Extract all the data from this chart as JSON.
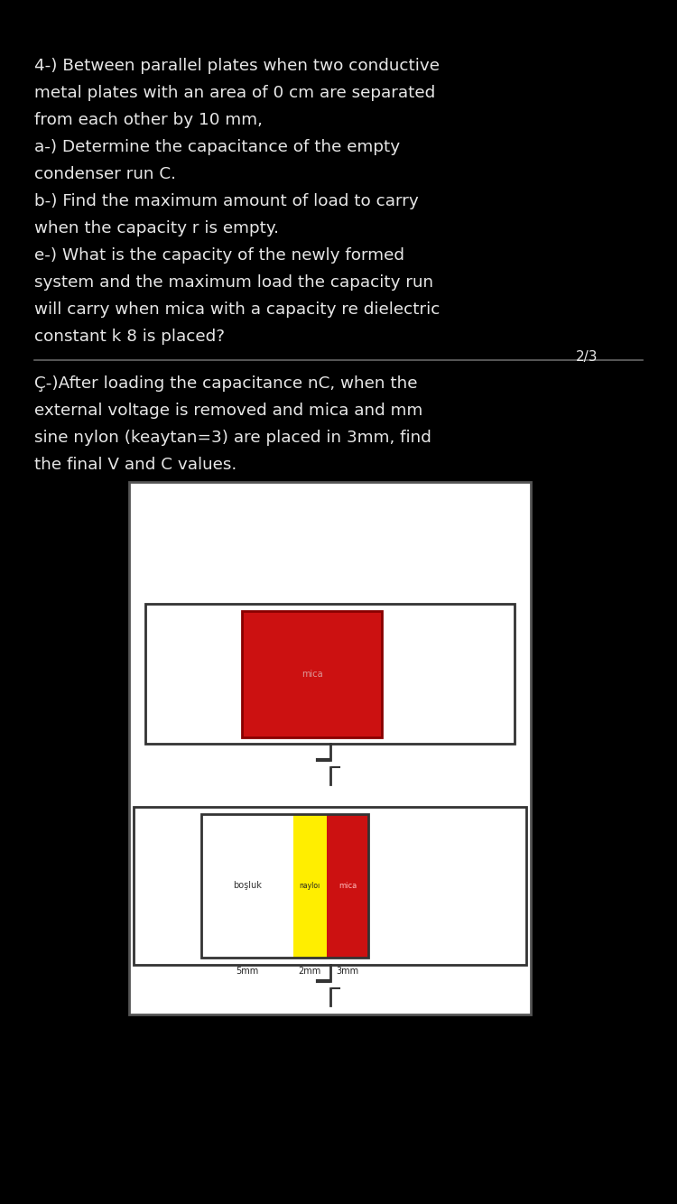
{
  "bg_color": "#000000",
  "text_color": "#e8e8e8",
  "diagram_bg": "#ffffff",
  "red_color": "#cc1111",
  "yellow_color": "#ffee00",
  "text1_lines": [
    "4-) Between parallel plates when two conductive",
    "metal plates with an area of 0 cm are separated",
    "from each other by 10 mm,",
    "a-) Determine the capacitance of the empty",
    "condenser run C.",
    "b-) Find the maximum amount of load to carry",
    "when the capacity r is empty.",
    "e-) What is the capacity of the newly formed",
    "system and the maximum load the capacity run",
    "will carry when mica with a capacity re dielectric",
    "constant k 8 is placed?"
  ],
  "page_label": "2/3",
  "text2_lines": [
    "Ç-)After loading the capacitance nC, when the",
    "external voltage is removed and mica and mm",
    "sine nylon (keaytan=3) are placed in 3mm, find",
    "the final V and C values."
  ],
  "label_mica_top": "mica",
  "label_bosluk": "boşluk",
  "label_naylo": "nayloı",
  "label_mica_bot": "mica",
  "label_5mm": "5mm",
  "label_2mm": "2mm",
  "label_3mm": "3mm",
  "divider_color": "#666666",
  "circuit_color": "#333333"
}
